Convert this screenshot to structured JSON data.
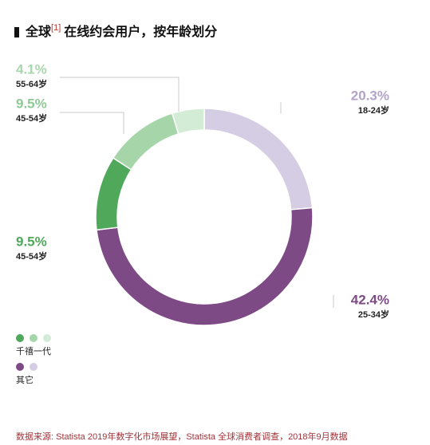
{
  "chart_data": {
    "type": "pie",
    "title": "全球",
    "title_note": "[1]",
    "title_rest": "在线约会用户，按年龄划分",
    "categories": [
      "18-24岁",
      "25-34岁",
      "45-54岁",
      "45-54岁",
      "55-64岁"
    ],
    "values": [
      20.3,
      42.4,
      9.5,
      9.5,
      4.1
    ],
    "value_labels": [
      "20.3%",
      "42.4%",
      "9.5%",
      "9.5%",
      "4.1%"
    ],
    "colors": [
      "#d5cde3",
      "#7d4a86",
      "#50a85b",
      "#a6d5aa",
      "#d3ecd5"
    ],
    "legend": [
      {
        "name": "千禧一代",
        "colors": [
          "#50a85b",
          "#a6d5aa",
          "#d3ecd5"
        ]
      },
      {
        "name": "其它",
        "colors": [
          "#7d4a86",
          "#d5cde3"
        ]
      }
    ],
    "source": "数据来源: Statista 2019年数字化市场展望，Statista 全球消费者调查，2018年9月数据"
  }
}
